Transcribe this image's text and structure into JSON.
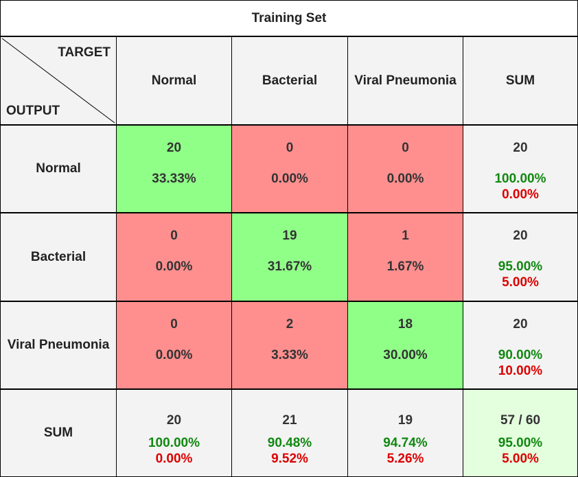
{
  "title": "Training Set",
  "corner": {
    "target": "TARGET",
    "output": "OUTPUT"
  },
  "colors": {
    "correct_bg": "#90ff88",
    "error_bg": "#ff8f8f",
    "header_bg": "#f3f3f3",
    "total_bg": "#e3ffde",
    "good_text": "#118811",
    "bad_text": "#dd0000",
    "grid_line": "#000000"
  },
  "chart_data": {
    "type": "table",
    "title": "Training Set",
    "xlabel": "TARGET",
    "ylabel": "OUTPUT",
    "columns": [
      "Normal",
      "Bacterial",
      "Viral Pneumonia",
      "SUM"
    ],
    "rows": [
      "Normal",
      "Bacterial",
      "Viral Pneumonia",
      "SUM"
    ],
    "matrix": [
      [
        {
          "count": "20",
          "pct": "33.33%"
        },
        {
          "count": "0",
          "pct": "0.00%"
        },
        {
          "count": "0",
          "pct": "0.00%"
        }
      ],
      [
        {
          "count": "0",
          "pct": "0.00%"
        },
        {
          "count": "19",
          "pct": "31.67%"
        },
        {
          "count": "1",
          "pct": "1.67%"
        }
      ],
      [
        {
          "count": "0",
          "pct": "0.00%"
        },
        {
          "count": "2",
          "pct": "3.33%"
        },
        {
          "count": "18",
          "pct": "30.00%"
        }
      ]
    ],
    "row_sums": [
      {
        "count": "20",
        "good": "100.00%",
        "bad": "0.00%"
      },
      {
        "count": "20",
        "good": "95.00%",
        "bad": "5.00%"
      },
      {
        "count": "20",
        "good": "90.00%",
        "bad": "10.00%"
      }
    ],
    "col_sums": [
      {
        "count": "20",
        "good": "100.00%",
        "bad": "0.00%"
      },
      {
        "count": "21",
        "good": "90.48%",
        "bad": "9.52%"
      },
      {
        "count": "19",
        "good": "94.74%",
        "bad": "5.26%"
      }
    ],
    "total": {
      "count": "57 / 60",
      "good": "95.00%",
      "bad": "5.00%"
    }
  }
}
